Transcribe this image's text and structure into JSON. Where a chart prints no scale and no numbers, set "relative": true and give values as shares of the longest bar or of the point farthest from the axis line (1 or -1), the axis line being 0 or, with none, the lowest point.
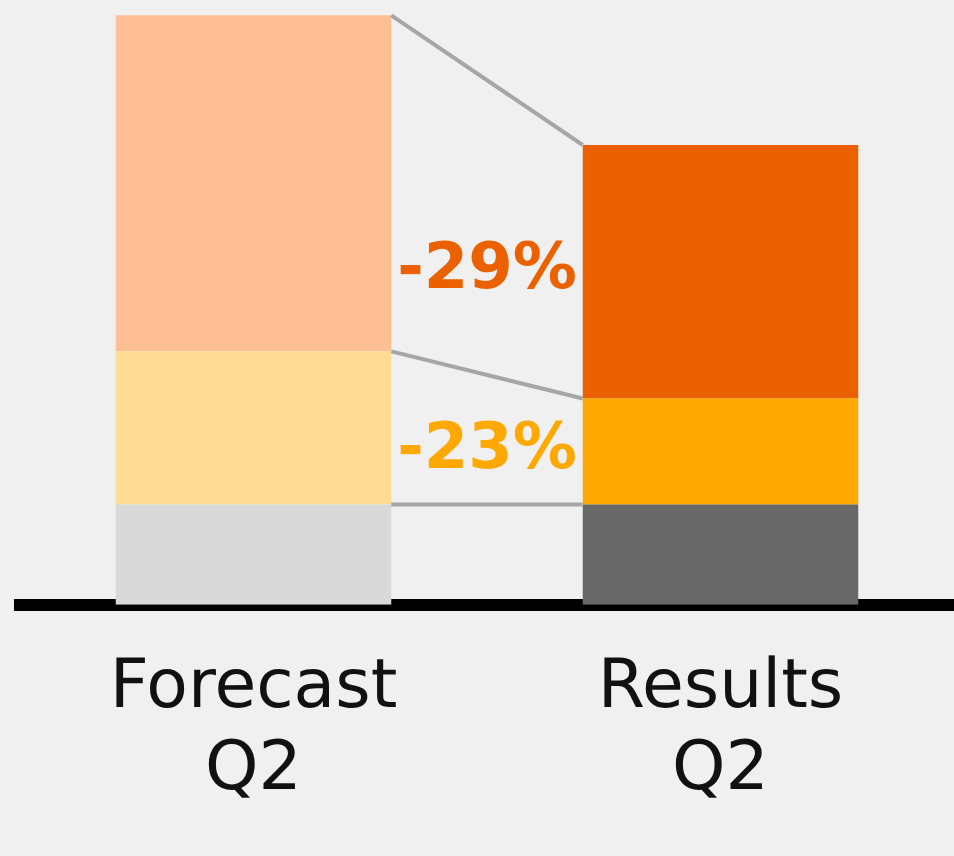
{
  "chart_data": {
    "type": "bar",
    "relative": true,
    "stacked": true,
    "categories": [
      "Forecast Q2",
      "Results Q2"
    ],
    "series": [
      {
        "colors": [
          "#d9d9d9",
          "#686868"
        ],
        "values": [
          0.17,
          0.17
        ]
      },
      {
        "colors": [
          "#ffdc96",
          "#ffa800"
        ],
        "values": [
          0.26,
          0.18
        ]
      },
      {
        "colors": [
          "#ffbf94",
          "#eb6100"
        ],
        "values": [
          0.57,
          0.43
        ]
      }
    ],
    "annotations": [
      "-29%",
      "-23%"
    ],
    "grid": false,
    "legend": false
  }
}
